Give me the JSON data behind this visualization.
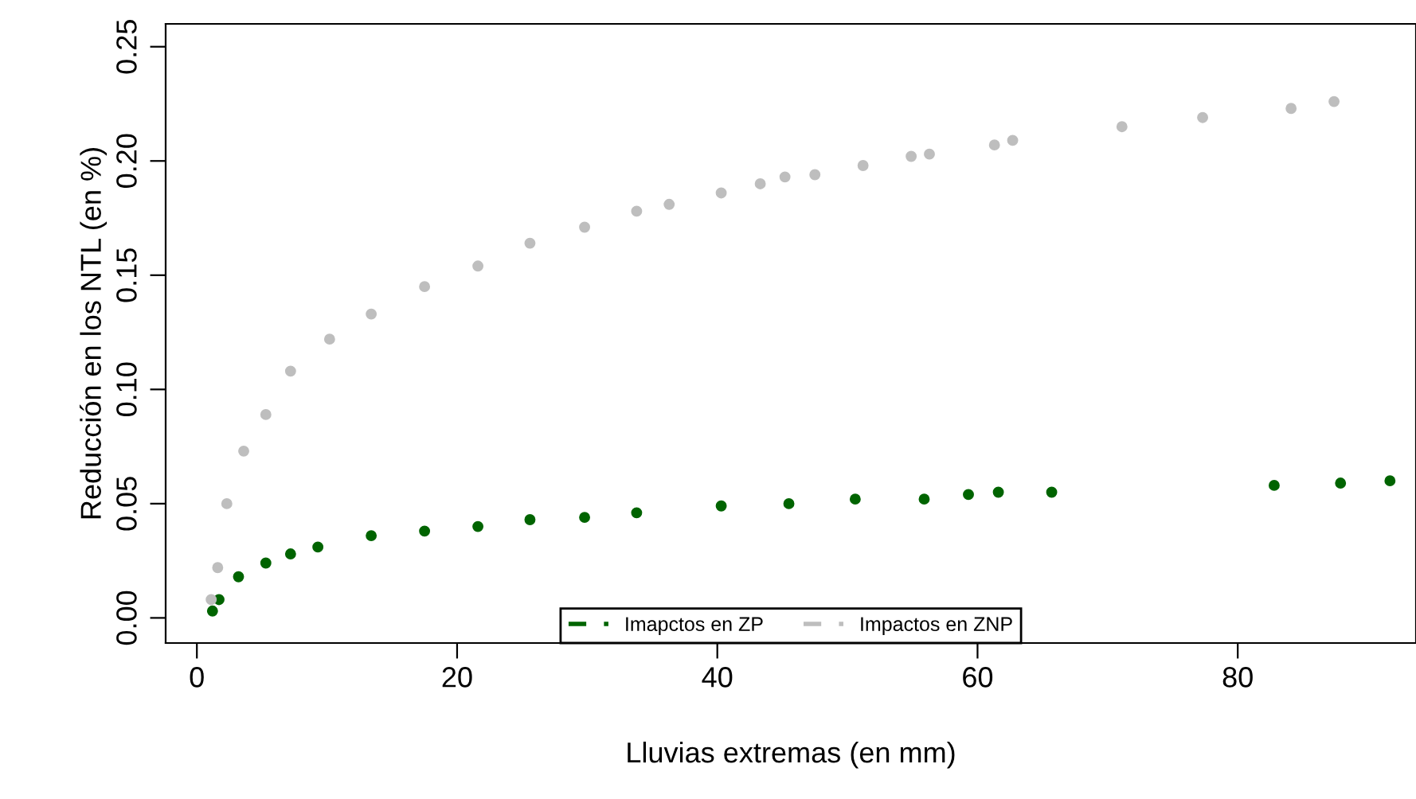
{
  "chart_data": {
    "type": "scatter",
    "xlabel": "Lluvias extremas (en mm)",
    "ylabel": "Reducción en los NTL (en %)",
    "xlim": [
      -2.4,
      93.7
    ],
    "ylim": [
      -0.011,
      0.26
    ],
    "xticks": [
      0,
      20,
      40,
      60,
      80
    ],
    "yticks": [
      {
        "value": 0,
        "label": "0.00"
      },
      0.05,
      {
        "value": 0.1,
        "label": "0.10"
      },
      0.15,
      {
        "value": 0.2,
        "label": "0.20"
      },
      0.25
    ],
    "legend": "bottom",
    "marker": "circle",
    "grid": false,
    "series": [
      {
        "name": "Imapctos en ZP",
        "color": "#006400",
        "x": [
          1.2,
          1.7,
          3.2,
          5.3,
          7.2,
          9.3,
          13.4,
          17.5,
          21.6,
          25.6,
          29.8,
          33.8,
          40.3,
          45.5,
          50.6,
          55.9,
          59.3,
          61.6,
          65.7,
          82.8,
          87.9,
          91.7
        ],
        "values": [
          0.003,
          0.008,
          0.018,
          0.024,
          0.028,
          0.031,
          0.036,
          0.038,
          0.04,
          0.043,
          0.044,
          0.046,
          0.049,
          0.05,
          0.052,
          0.052,
          0.054,
          0.055,
          0.055,
          0.058,
          0.059,
          0.06
        ]
      },
      {
        "name": "Impactos en ZNP",
        "color": "#bebebe",
        "x": [
          1.1,
          1.6,
          2.3,
          3.6,
          5.3,
          7.2,
          10.2,
          13.4,
          17.5,
          21.6,
          25.6,
          29.8,
          33.8,
          36.3,
          40.3,
          43.3,
          45.2,
          47.5,
          51.2,
          54.9,
          56.3,
          61.3,
          62.7,
          71.1,
          77.3,
          84.1,
          87.4
        ],
        "values": [
          0.008,
          0.022,
          0.05,
          0.073,
          0.089,
          0.108,
          0.122,
          0.133,
          0.145,
          0.154,
          0.164,
          0.171,
          0.178,
          0.181,
          0.186,
          0.19,
          0.193,
          0.194,
          0.198,
          0.202,
          0.203,
          0.207,
          0.209,
          0.215,
          0.219,
          0.223,
          0.226
        ]
      }
    ]
  }
}
